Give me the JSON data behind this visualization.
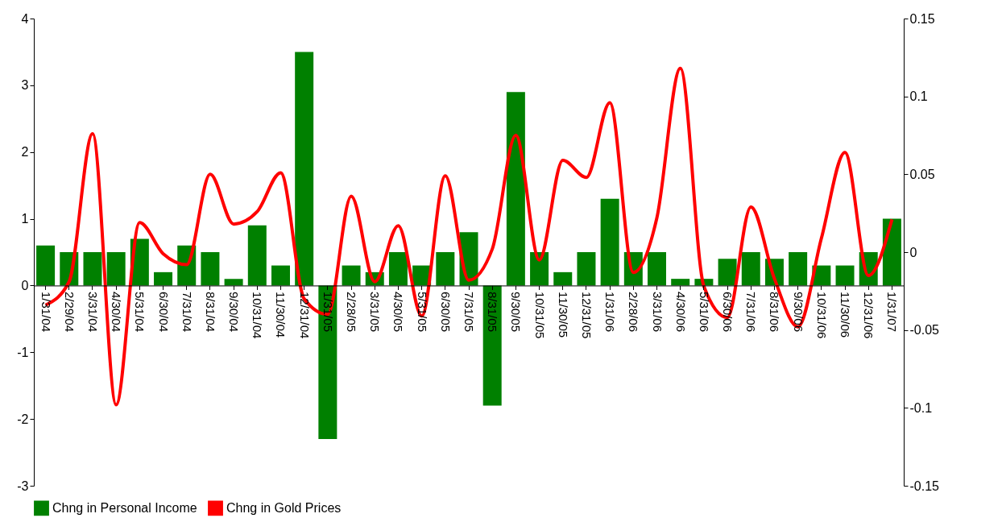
{
  "chart_data": {
    "type": "bar",
    "categories": [
      "1/31/04",
      "2/29/04",
      "3/31/04",
      "4/30/04",
      "5/31/04",
      "6/30/04",
      "7/31/04",
      "8/31/04",
      "9/30/04",
      "10/31/04",
      "11/30/04",
      "12/31/04",
      "1/31/05",
      "2/28/05",
      "3/31/05",
      "4/30/05",
      "5/31/05",
      "6/30/05",
      "7/31/05",
      "8/31/05",
      "9/30/05",
      "10/31/05",
      "11/30/05",
      "12/31/05",
      "1/31/06",
      "2/28/06",
      "3/31/06",
      "4/30/06",
      "5/31/06",
      "6/30/06",
      "7/31/06",
      "8/31/06",
      "9/30/06",
      "10/31/06",
      "11/30/06",
      "12/31/06",
      "1/31/07"
    ],
    "series": [
      {
        "name": "Chng in Personal Income",
        "color": "#008000",
        "values": [
          0.6,
          0.5,
          0.5,
          0.5,
          0.7,
          0.2,
          0.6,
          0.5,
          0.1,
          0.9,
          0.3,
          3.5,
          -2.3,
          0.3,
          0.2,
          0.5,
          0.3,
          0.5,
          0.8,
          -1.8,
          2.9,
          0.5,
          0.2,
          0.5,
          1.3,
          0.5,
          0.5,
          0.1,
          0.1,
          0.4,
          0.5,
          0.4,
          0.5,
          0.3,
          0.3,
          0.5,
          1.0
        ]
      },
      {
        "name": "Chng in Gold Prices",
        "type": "line",
        "axis": "y2",
        "color": "#ff0000",
        "values": [
          -0.034,
          -0.019,
          0.076,
          -0.098,
          0.019,
          -0.001,
          -0.008,
          0.05,
          0.018,
          0.026,
          0.051,
          -0.03,
          -0.04,
          0.036,
          -0.019,
          0.017,
          -0.041,
          0.049,
          -0.018,
          0.002,
          0.075,
          -0.005,
          0.059,
          0.048,
          0.096,
          -0.013,
          0.022,
          0.118,
          -0.022,
          -0.042,
          0.029,
          -0.017,
          -0.048,
          0.009,
          0.064,
          -0.015,
          0.021
        ]
      }
    ],
    "ylim": [
      -3,
      4
    ],
    "yticks": [
      -3,
      -2,
      -1,
      0,
      1,
      2,
      3,
      4
    ],
    "y2lim": [
      -0.15,
      0.15
    ],
    "y2ticks": [
      -0.15,
      -0.1,
      -0.05,
      0,
      0.05,
      0.1,
      0.15
    ],
    "grid": false,
    "legend": "bottom",
    "line_style": "solid",
    "marker": "none"
  }
}
